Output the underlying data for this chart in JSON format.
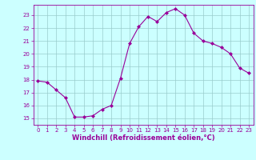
{
  "x": [
    0,
    1,
    2,
    3,
    4,
    5,
    6,
    7,
    8,
    9,
    10,
    11,
    12,
    13,
    14,
    15,
    16,
    17,
    18,
    19,
    20,
    21,
    22,
    23
  ],
  "y": [
    17.9,
    17.8,
    17.2,
    16.6,
    15.1,
    15.1,
    15.2,
    15.7,
    16.0,
    18.1,
    20.8,
    22.1,
    22.9,
    22.5,
    23.2,
    23.5,
    23.0,
    21.6,
    21.0,
    20.8,
    20.5,
    20.0,
    18.9,
    18.5
  ],
  "line_color": "#990099",
  "marker": "D",
  "marker_size": 2.0,
  "bg_color": "#ccffff",
  "grid_color": "#99cccc",
  "xlabel": "Windchill (Refroidissement éolien,°C)",
  "xlim": [
    -0.5,
    23.5
  ],
  "ylim": [
    14.5,
    23.8
  ],
  "yticks": [
    15,
    16,
    17,
    18,
    19,
    20,
    21,
    22,
    23
  ],
  "xticks": [
    0,
    1,
    2,
    3,
    4,
    5,
    6,
    7,
    8,
    9,
    10,
    11,
    12,
    13,
    14,
    15,
    16,
    17,
    18,
    19,
    20,
    21,
    22,
    23
  ],
  "tick_color": "#990099",
  "tick_fontsize": 5.0,
  "xlabel_fontsize": 6.0,
  "spine_color": "#990099",
  "linewidth": 0.8
}
